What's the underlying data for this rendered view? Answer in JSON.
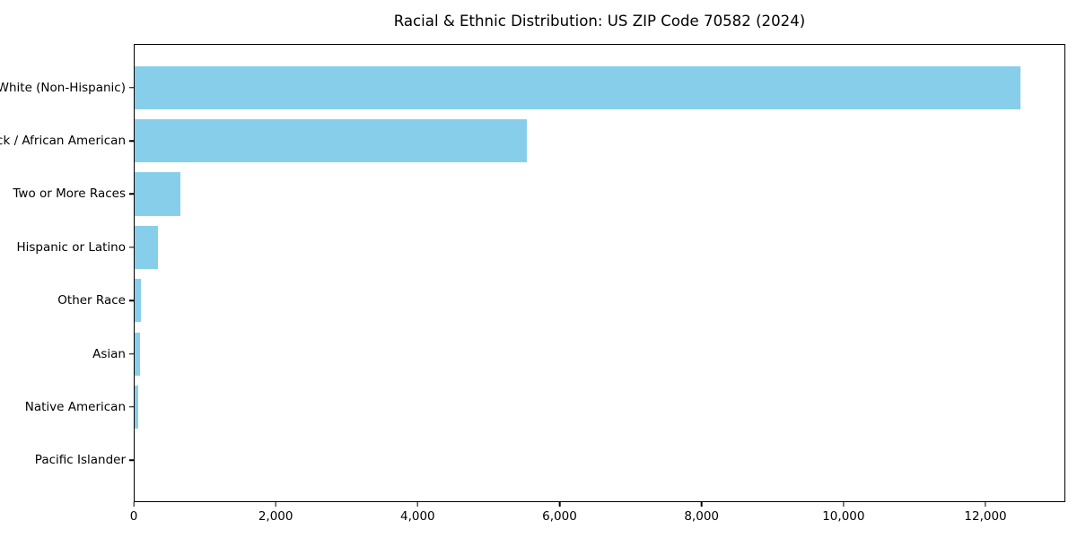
{
  "chart_data": {
    "type": "bar",
    "orientation": "horizontal",
    "title": "Racial & Ethnic Distribution: US ZIP Code 70582 (2024)",
    "categories": [
      "White (Non-Hispanic)",
      "Black / African American",
      "Two or More Races",
      "Hispanic or Latino",
      "Other Race",
      "Asian",
      "Native American",
      "Pacific Islander"
    ],
    "values": [
      12500,
      5540,
      650,
      330,
      90,
      75,
      45,
      0
    ],
    "bar_color": "#87CEEB",
    "axis_color": "#000000",
    "background_color": "#ffffff",
    "xlim": [
      0,
      13125
    ],
    "x_ticks": {
      "values": [
        0,
        2000,
        4000,
        6000,
        8000,
        10000,
        12000
      ],
      "labels": [
        "0",
        "2,000",
        "4,000",
        "6,000",
        "8,000",
        "10,000",
        "12,000"
      ]
    },
    "grid": false,
    "legend_position": "none"
  }
}
